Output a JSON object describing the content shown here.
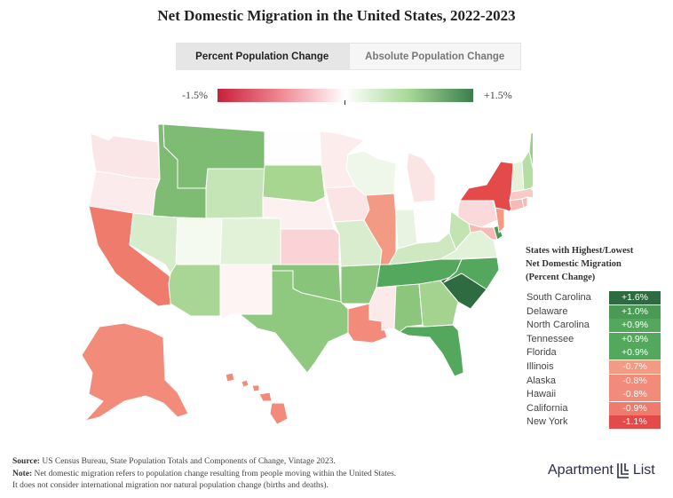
{
  "title": "Net Domestic Migration in the United States, 2022-2023",
  "tabs": [
    {
      "label": "Percent Population Change",
      "active": true
    },
    {
      "label": "Absolute Population Change",
      "active": false
    }
  ],
  "legend": {
    "min_label": "-1.5%",
    "max_label": "+1.5%",
    "min_color": "#c8203a",
    "mid_color": "#ffffff",
    "max_color": "#3a7d4e"
  },
  "ranking": {
    "title_lines": [
      "States with Highest/Lowest",
      "Net Domestic Migration",
      "(Percent Change)"
    ],
    "rows": [
      {
        "state": "South Carolina",
        "value": "+1.6%",
        "color": "#2e6b40"
      },
      {
        "state": "Delaware",
        "value": "+1.0%",
        "color": "#4a9a55"
      },
      {
        "state": "North Carolina",
        "value": "+0.9%",
        "color": "#54a85d"
      },
      {
        "state": "Tennessee",
        "value": "+0.9%",
        "color": "#54a85d"
      },
      {
        "state": "Florida",
        "value": "+0.9%",
        "color": "#54a85d"
      },
      {
        "state": "Illinois",
        "value": "-0.7%",
        "color": "#f39a85"
      },
      {
        "state": "Alaska",
        "value": "-0.8%",
        "color": "#f28b7a"
      },
      {
        "state": "Hawaii",
        "value": "-0.8%",
        "color": "#f28b7a"
      },
      {
        "state": "California",
        "value": "-0.9%",
        "color": "#ef7b6c"
      },
      {
        "state": "New York",
        "value": "-1.1%",
        "color": "#e44a4a"
      }
    ]
  },
  "source": {
    "source_label": "Source:",
    "source_text": "US Census Bureau, State Population Totals and Components of Change, Vintage 2023.",
    "note_label": "Note:",
    "note_text": "Net domestic migration refers to population change resulting from people moving within the United States.",
    "note_text2": "It does not consider international migration nor natural population change (births and deaths)."
  },
  "logo": {
    "left": "Apartment",
    "right": "List"
  },
  "map_states": [
    {
      "name": "washington",
      "color": "#fbe6e7"
    },
    {
      "name": "oregon",
      "color": "#fcebec"
    },
    {
      "name": "california",
      "color": "#ef7b6c"
    },
    {
      "name": "nevada",
      "color": "#d6eccb"
    },
    {
      "name": "idaho",
      "color": "#7dbc72"
    },
    {
      "name": "montana",
      "color": "#7dbc72"
    },
    {
      "name": "wyoming",
      "color": "#c6e5b6"
    },
    {
      "name": "utah",
      "color": "#f4faf0"
    },
    {
      "name": "arizona",
      "color": "#a9d695"
    },
    {
      "name": "colorado",
      "color": "#e2f2d9"
    },
    {
      "name": "new-mexico",
      "color": "#fef4f4"
    },
    {
      "name": "north-dakota",
      "color": "#fefefe"
    },
    {
      "name": "south-dakota",
      "color": "#a6d68f"
    },
    {
      "name": "nebraska",
      "color": "#fdf0f0"
    },
    {
      "name": "kansas",
      "color": "#f9d3d5"
    },
    {
      "name": "oklahoma",
      "color": "#88c57b"
    },
    {
      "name": "texas",
      "color": "#8ec97f"
    },
    {
      "name": "minnesota",
      "color": "#fcecec"
    },
    {
      "name": "iowa",
      "color": "#fbe4e4"
    },
    {
      "name": "missouri",
      "color": "#d9ecce"
    },
    {
      "name": "arkansas",
      "color": "#8cc67d"
    },
    {
      "name": "louisiana",
      "color": "#f28b7a"
    },
    {
      "name": "wisconsin",
      "color": "#eef7e9"
    },
    {
      "name": "illinois",
      "color": "#f39a85"
    },
    {
      "name": "michigan",
      "color": "#fbe4e4"
    },
    {
      "name": "indiana",
      "color": "#e8f4e1"
    },
    {
      "name": "ohio",
      "color": "#fefefe"
    },
    {
      "name": "kentucky",
      "color": "#cfe8c2"
    },
    {
      "name": "tennessee",
      "color": "#54a85d"
    },
    {
      "name": "mississippi",
      "color": "#fceaea"
    },
    {
      "name": "alabama",
      "color": "#8cc67d"
    },
    {
      "name": "georgia",
      "color": "#a4d390"
    },
    {
      "name": "florida",
      "color": "#54a85d"
    },
    {
      "name": "south-carolina",
      "color": "#2e6b40"
    },
    {
      "name": "north-carolina",
      "color": "#54a85d"
    },
    {
      "name": "virginia",
      "color": "#e2f2d9"
    },
    {
      "name": "west-virginia",
      "color": "#c3e3b2"
    },
    {
      "name": "pennsylvania",
      "color": "#fad9db"
    },
    {
      "name": "new-york",
      "color": "#e44a4a"
    },
    {
      "name": "maryland",
      "color": "#f7b9b3"
    },
    {
      "name": "delaware",
      "color": "#4a9a55"
    },
    {
      "name": "new-jersey",
      "color": "#f39a85"
    },
    {
      "name": "connecticut",
      "color": "#f7b9b3"
    },
    {
      "name": "rhode-island",
      "color": "#f7b9b3"
    },
    {
      "name": "massachusetts",
      "color": "#f9c9c5"
    },
    {
      "name": "vermont",
      "color": "#e3f2d9"
    },
    {
      "name": "new-hampshire",
      "color": "#b6dea4"
    },
    {
      "name": "maine",
      "color": "#9ccf88"
    },
    {
      "name": "alaska",
      "color": "#f28b7a"
    },
    {
      "name": "hawaii",
      "color": "#f28b7a"
    }
  ]
}
